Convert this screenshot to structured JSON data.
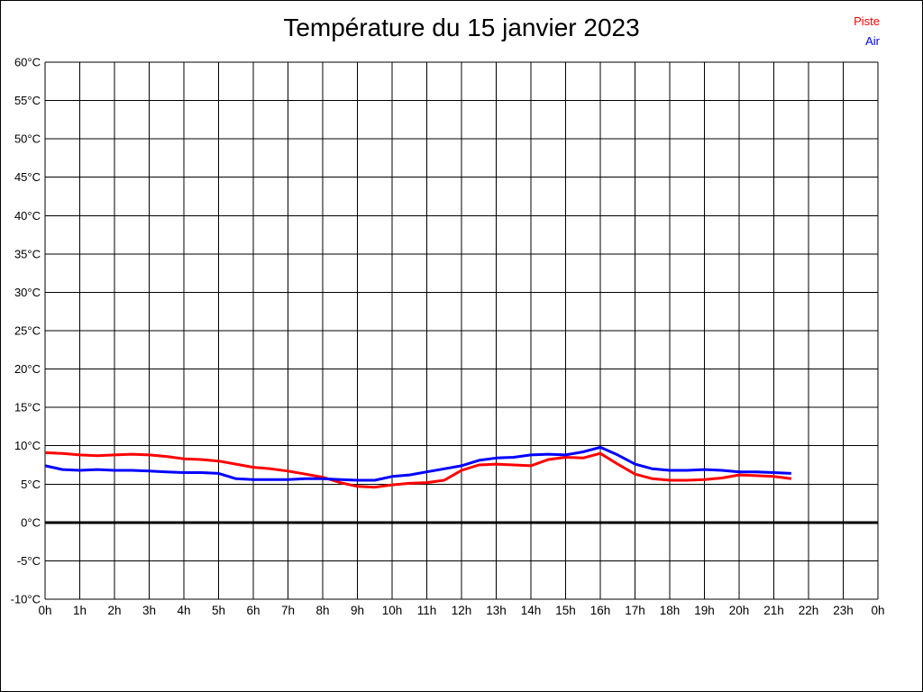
{
  "window": {
    "background": "#ffffff",
    "border_color": "#000000"
  },
  "chart_data": {
    "type": "line",
    "title": "Température du 15 janvier 2023",
    "xlabel": "",
    "ylabel": "",
    "x_unit": "hours",
    "xlim": [
      0,
      24
    ],
    "ylim": [
      -10,
      60
    ],
    "y_tick_step": 5,
    "x_tick_step": 1,
    "grid": true,
    "zero_line_thick": true,
    "legend_position": "top-right",
    "axis_color": "#000000",
    "text_color": "#000000",
    "y_tick_labels": [
      "60°C",
      "55°C",
      "50°C",
      "45°C",
      "40°C",
      "35°C",
      "30°C",
      "25°C",
      "20°C",
      "15°C",
      "10°C",
      "5°C",
      "0°C",
      "-5°C",
      "-10°C"
    ],
    "x_tick_labels": [
      "0h",
      "1h",
      "2h",
      "3h",
      "4h",
      "5h",
      "6h",
      "7h",
      "8h",
      "9h",
      "10h",
      "11h",
      "12h",
      "13h",
      "14h",
      "15h",
      "16h",
      "17h",
      "18h",
      "19h",
      "20h",
      "21h",
      "22h",
      "23h",
      "0h"
    ],
    "series": [
      {
        "name": "Piste",
        "color": "#ff0000",
        "x": [
          0,
          0.5,
          1,
          1.5,
          2,
          2.5,
          3,
          3.5,
          4,
          4.5,
          5,
          5.5,
          6,
          6.5,
          7,
          7.5,
          8,
          8.5,
          9,
          9.5,
          10,
          10.5,
          11,
          11.5,
          12,
          12.5,
          13,
          13.5,
          14,
          14.5,
          15,
          15.5,
          16,
          16.5,
          17,
          17.5,
          18,
          18.5,
          19,
          19.5,
          20,
          20.5,
          21,
          21.5
        ],
        "values": [
          9.1,
          9.0,
          8.8,
          8.7,
          8.8,
          8.9,
          8.8,
          8.6,
          8.3,
          8.2,
          8.0,
          7.6,
          7.2,
          7.0,
          6.7,
          6.3,
          5.9,
          5.2,
          4.7,
          4.6,
          4.9,
          5.1,
          5.2,
          5.5,
          6.8,
          7.5,
          7.6,
          7.5,
          7.4,
          8.2,
          8.5,
          8.4,
          9.0,
          7.6,
          6.3,
          5.7,
          5.5,
          5.5,
          5.6,
          5.8,
          6.2,
          6.1,
          6.0,
          5.7
        ]
      },
      {
        "name": "Air",
        "color": "#0000ff",
        "x": [
          0,
          0.5,
          1,
          1.5,
          2,
          2.5,
          3,
          3.5,
          4,
          4.5,
          5,
          5.5,
          6,
          6.5,
          7,
          7.5,
          8,
          8.5,
          9,
          9.5,
          10,
          10.5,
          11,
          11.5,
          12,
          12.5,
          13,
          13.5,
          14,
          14.5,
          15,
          15.5,
          16,
          16.5,
          17,
          17.5,
          18,
          18.5,
          19,
          19.5,
          20,
          20.5,
          21,
          21.5
        ],
        "values": [
          7.4,
          6.9,
          6.8,
          6.9,
          6.8,
          6.8,
          6.7,
          6.6,
          6.5,
          6.5,
          6.4,
          5.7,
          5.6,
          5.6,
          5.6,
          5.7,
          5.7,
          5.6,
          5.5,
          5.5,
          6.0,
          6.2,
          6.6,
          7.0,
          7.4,
          8.1,
          8.4,
          8.5,
          8.8,
          8.9,
          8.8,
          9.2,
          9.8,
          8.8,
          7.6,
          7.0,
          6.8,
          6.8,
          6.9,
          6.8,
          6.6,
          6.6,
          6.5,
          6.4
        ]
      }
    ]
  }
}
